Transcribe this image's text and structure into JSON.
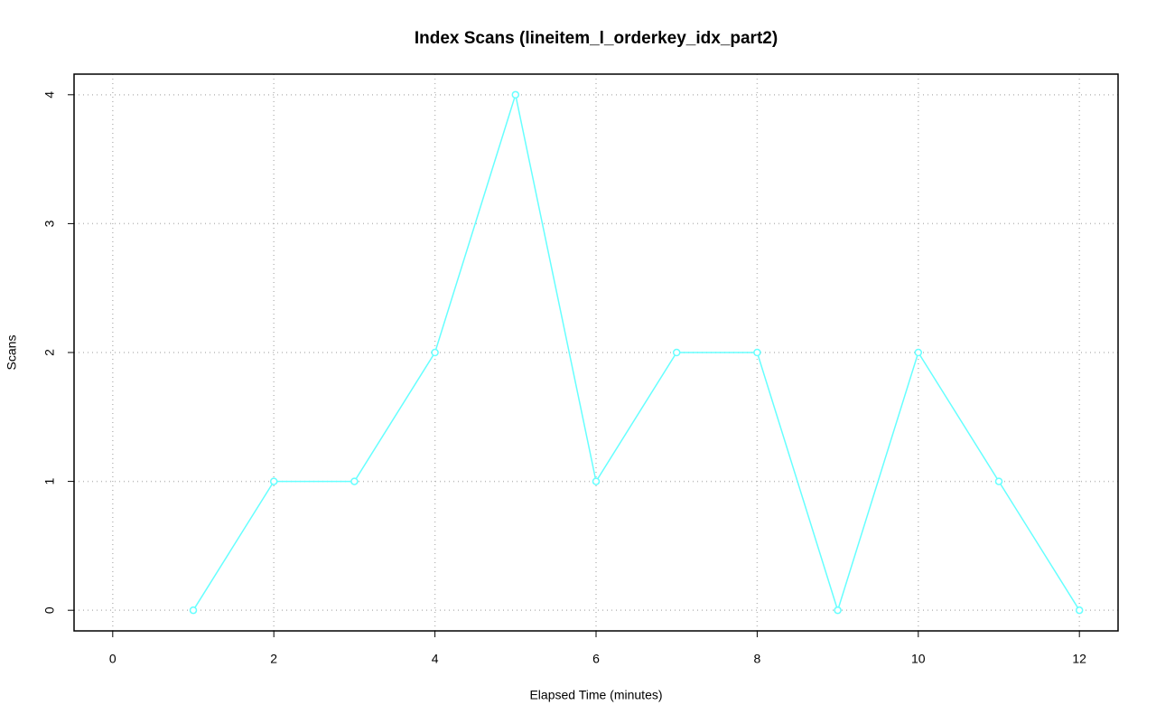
{
  "chart_data": {
    "type": "line",
    "title": "Index Scans (lineitem_l_orderkey_idx_part2)",
    "x_label": "Elapsed Time (minutes)",
    "y_label": "Scans",
    "x": [
      1,
      2,
      3,
      4,
      5,
      6,
      7,
      8,
      9,
      10,
      11,
      12
    ],
    "series": [
      {
        "name": "lineitem_l_orderkey_idx_part2",
        "color": "#66ffff",
        "values": [
          0,
          1,
          1,
          2,
          4,
          1,
          2,
          2,
          0,
          2,
          1,
          0
        ]
      }
    ],
    "xlim": [
      -0.48,
      12.48
    ],
    "xticks": [
      0,
      2,
      4,
      6,
      8,
      10,
      12
    ],
    "ylim": [
      -0.16,
      4.16
    ],
    "yticks": [
      0,
      1,
      2,
      3,
      4
    ],
    "grid": true
  }
}
